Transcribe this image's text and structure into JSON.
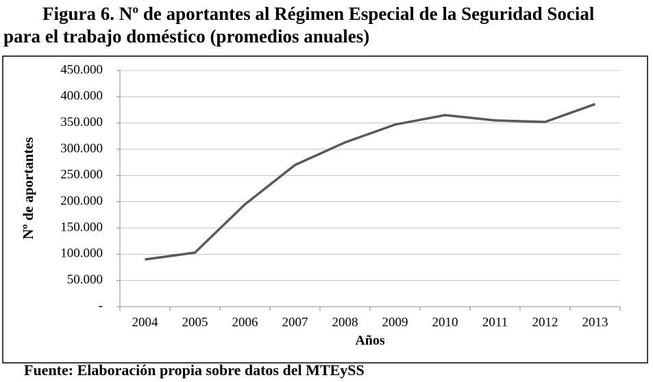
{
  "chart_data": {
    "type": "line",
    "title": [
      "Figura 6. Nº de aportantes al Régimen Especial de la Seguridad Social",
      "para el trabajo doméstico (promedios anuales)"
    ],
    "xlabel": "Años",
    "ylabel": "Nº de aportantes",
    "source": "Fuente: Elaboración propia sobre datos del MTEySS",
    "categories": [
      "2004",
      "2005",
      "2006",
      "2007",
      "2008",
      "2009",
      "2010",
      "2011",
      "2012",
      "2013"
    ],
    "series": [
      {
        "name": "Nº de aportantes",
        "color": "#595959",
        "values": [
          90000,
          103000,
          195000,
          270000,
          313000,
          347000,
          365000,
          355000,
          352000,
          386000
        ]
      }
    ],
    "ylim": [
      0,
      450000
    ],
    "yticks": [
      {
        "value": 0,
        "label": "-"
      },
      {
        "value": 50000,
        "label": "50.000"
      },
      {
        "value": 100000,
        "label": "100.000"
      },
      {
        "value": 150000,
        "label": "150.000"
      },
      {
        "value": 200000,
        "label": "200.000"
      },
      {
        "value": 250000,
        "label": "250.000"
      },
      {
        "value": 300000,
        "label": "300.000"
      },
      {
        "value": 350000,
        "label": "350.000"
      },
      {
        "value": 400000,
        "label": "400.000"
      },
      {
        "value": 450000,
        "label": "450.000"
      }
    ],
    "grid": true
  }
}
